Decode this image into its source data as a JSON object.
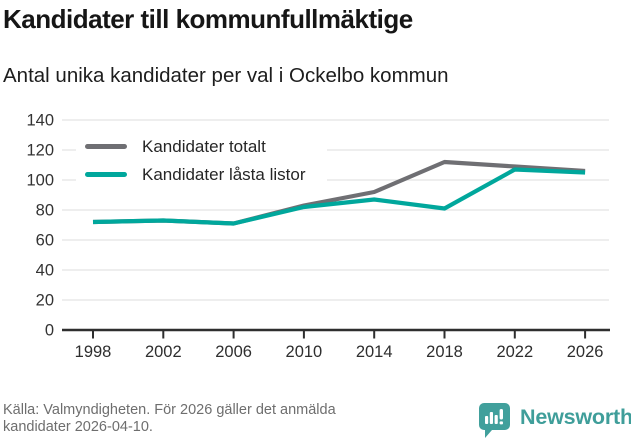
{
  "header": {
    "title": "Kandidater till kommunfullmäktige",
    "subtitle": "Antal unika kandidater per val i Ockelbo kommun"
  },
  "chart_data": {
    "type": "line",
    "title": "Kandidater till kommunfullmäktige",
    "subtitle": "Antal unika kandidater per val i Ockelbo kommun",
    "x": [
      1998,
      2002,
      2006,
      2010,
      2014,
      2018,
      2022,
      2026
    ],
    "series": [
      {
        "name": "Kandidater totalt",
        "color": "#6f6f73",
        "values": [
          72,
          73,
          71,
          83,
          92,
          112,
          109,
          106
        ]
      },
      {
        "name": "Kandidater låsta listor",
        "color": "#00a79c",
        "values": [
          72,
          73,
          71,
          82,
          87,
          81,
          107,
          105
        ]
      }
    ],
    "ylim": [
      0,
      140
    ],
    "yticks": [
      0,
      20,
      40,
      60,
      80,
      100,
      120,
      140
    ],
    "grid": true,
    "legend_position": "top-left"
  },
  "footer": {
    "source": "Källa: Valmyndigheten. För 2026 gäller det anmälda kandidater 2026-04-10.",
    "brand": "Newsworthy"
  },
  "colors": {
    "series_total": "#6f6f73",
    "series_locked": "#00a79c",
    "grid": "#e3e3e3",
    "axis": "#2e2e2e",
    "tick_text": "#333333",
    "title_text": "#161616",
    "footer_text": "#6e6e6e",
    "logo_teal": "#41a09c"
  }
}
